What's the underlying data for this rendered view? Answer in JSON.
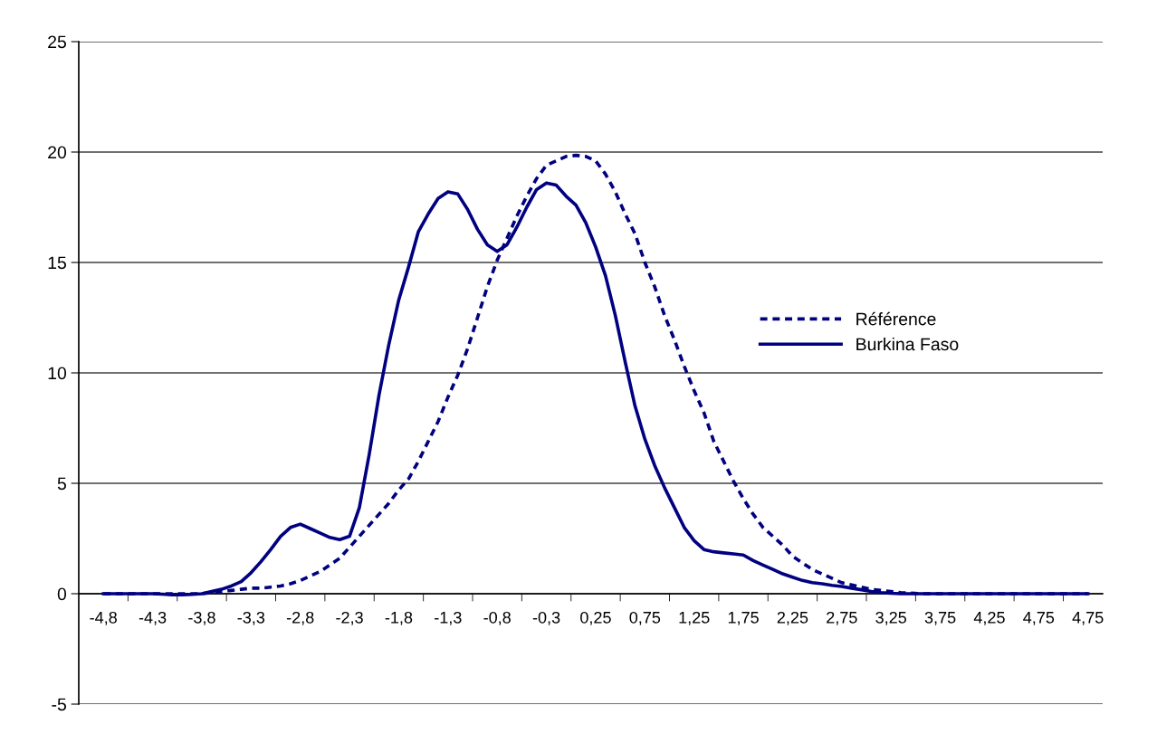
{
  "chart_data": {
    "type": "line",
    "categories": [
      null,
      null,
      "-4,8",
      null,
      null,
      null,
      null,
      "-4,3",
      null,
      null,
      null,
      null,
      "-3,8",
      null,
      null,
      null,
      null,
      "-3,3",
      null,
      null,
      null,
      null,
      "-2,8",
      null,
      null,
      null,
      null,
      "-2,3",
      null,
      null,
      null,
      null,
      "-1,8",
      null,
      null,
      null,
      null,
      "-1,3",
      null,
      null,
      null,
      null,
      "-0,8",
      null,
      null,
      null,
      null,
      "-0,3",
      null,
      null,
      null,
      null,
      "0,25",
      null,
      null,
      null,
      null,
      "0,75",
      null,
      null,
      null,
      null,
      "1,25",
      null,
      null,
      null,
      null,
      "1,75",
      null,
      null,
      null,
      null,
      "2,25",
      null,
      null,
      null,
      null,
      "2,75",
      null,
      null,
      null,
      null,
      "3,25",
      null,
      null,
      null,
      null,
      "3,75",
      null,
      null,
      null,
      null,
      "4,25",
      null,
      null,
      null,
      null,
      "4,75",
      null,
      null,
      null,
      null,
      "4,75",
      null
    ],
    "series": [
      {
        "name": "Référence",
        "color": "#000080",
        "line_style": "dashed",
        "values": [
          null,
          null,
          0,
          0,
          0,
          0,
          0,
          0,
          0,
          0,
          0,
          0,
          0,
          0.05,
          0.1,
          0.15,
          0.2,
          0.25,
          0.25,
          0.3,
          0.35,
          0.45,
          0.6,
          0.8,
          1.0,
          1.3,
          1.6,
          2.1,
          2.6,
          3.1,
          3.6,
          4.1,
          4.7,
          5.2,
          6.0,
          6.9,
          7.8,
          8.9,
          9.9,
          11.1,
          12.5,
          13.9,
          15.1,
          16.1,
          17.1,
          18.0,
          18.8,
          19.4,
          19.6,
          19.8,
          19.85,
          19.8,
          19.6,
          19.0,
          18.2,
          17.2,
          16.3,
          15.0,
          13.9,
          12.6,
          11.5,
          10.3,
          9.2,
          8.2,
          6.9,
          6.0,
          5.1,
          4.3,
          3.6,
          3.0,
          2.6,
          2.2,
          1.7,
          1.4,
          1.1,
          0.9,
          0.7,
          0.5,
          0.4,
          0.3,
          0.2,
          0.15,
          0.1,
          0.05,
          0.03,
          0,
          0,
          0,
          0,
          0,
          0,
          0,
          0,
          0,
          0,
          0,
          0,
          0,
          0,
          0,
          0,
          0,
          0,
          null
        ]
      },
      {
        "name": "Burkina Faso",
        "color": "#000080",
        "line_style": "solid",
        "values": [
          null,
          null,
          0,
          0,
          0,
          0,
          0,
          0,
          -0.02,
          -0.05,
          -0.05,
          -0.03,
          0,
          0.1,
          0.2,
          0.35,
          0.55,
          0.95,
          1.45,
          2.0,
          2.6,
          3.0,
          3.15,
          2.95,
          2.75,
          2.55,
          2.45,
          2.6,
          3.9,
          6.3,
          9.0,
          11.3,
          13.3,
          14.8,
          16.4,
          17.2,
          17.9,
          18.2,
          18.1,
          17.4,
          16.5,
          15.8,
          15.5,
          15.8,
          16.6,
          17.5,
          18.3,
          18.6,
          18.5,
          18.0,
          17.6,
          16.8,
          15.7,
          14.4,
          12.6,
          10.5,
          8.5,
          7.0,
          5.8,
          4.8,
          3.9,
          3.0,
          2.4,
          2.0,
          1.9,
          1.85,
          1.8,
          1.75,
          1.5,
          1.3,
          1.1,
          0.9,
          0.75,
          0.6,
          0.5,
          0.45,
          0.38,
          0.33,
          0.25,
          0.18,
          0.1,
          0.05,
          0.02,
          0,
          0,
          0,
          0,
          0,
          0,
          0,
          0,
          0,
          0,
          0,
          0,
          0,
          0,
          0,
          0,
          0,
          0,
          0,
          0,
          null
        ]
      }
    ],
    "ylim": [
      -5,
      25
    ],
    "yticks": [
      -5,
      0,
      5,
      10,
      15,
      20,
      25
    ],
    "grid": "y",
    "legend": "right",
    "marker": "none"
  }
}
